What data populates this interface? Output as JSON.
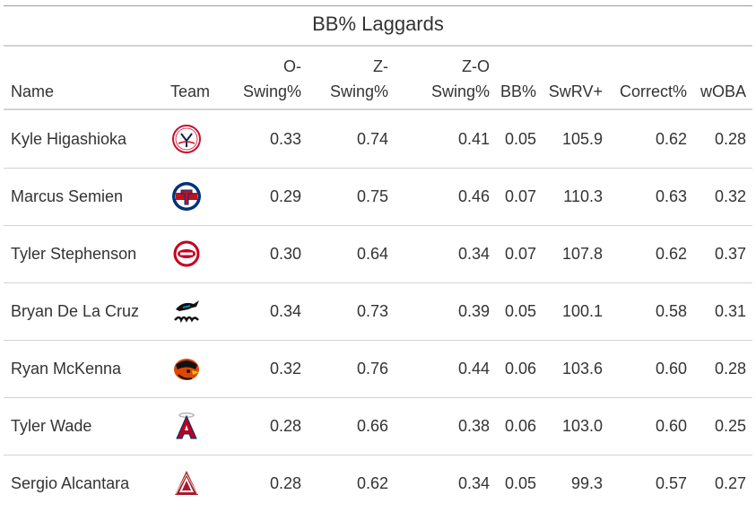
{
  "title": "BB% Laggards",
  "columns": {
    "name": "Name",
    "team": "Team",
    "o_swing_1": "O-",
    "o_swing_2": "Swing%",
    "z_swing_1": "Z-",
    "z_swing_2": "Swing%",
    "zo_swing_1": "Z-O",
    "zo_swing_2": "Swing%",
    "bb": "BB%",
    "swrv": "SwRV+",
    "correct": "Correct%",
    "woba": "wOBA"
  },
  "rows": [
    {
      "name": "Kyle Higashioka",
      "team_icon": "yankees-logo-icon",
      "o_swing": "0.33",
      "z_swing": "0.74",
      "zo_swing": "0.41",
      "bb": "0.05",
      "swrv": "105.9",
      "correct": "0.62",
      "woba": "0.28"
    },
    {
      "name": "Marcus Semien",
      "team_icon": "rangers-logo-icon",
      "o_swing": "0.29",
      "z_swing": "0.75",
      "zo_swing": "0.46",
      "bb": "0.07",
      "swrv": "110.3",
      "correct": "0.63",
      "woba": "0.32"
    },
    {
      "name": "Tyler Stephenson",
      "team_icon": "reds-logo-icon",
      "o_swing": "0.30",
      "z_swing": "0.64",
      "zo_swing": "0.34",
      "bb": "0.07",
      "swrv": "107.8",
      "correct": "0.62",
      "woba": "0.37"
    },
    {
      "name": "Bryan De La Cruz",
      "team_icon": "marlins-logo-icon",
      "o_swing": "0.34",
      "z_swing": "0.73",
      "zo_swing": "0.39",
      "bb": "0.05",
      "swrv": "100.1",
      "correct": "0.58",
      "woba": "0.31"
    },
    {
      "name": "Ryan McKenna",
      "team_icon": "orioles-logo-icon",
      "o_swing": "0.32",
      "z_swing": "0.76",
      "zo_swing": "0.44",
      "bb": "0.06",
      "swrv": "103.6",
      "correct": "0.60",
      "woba": "0.28"
    },
    {
      "name": "Tyler Wade",
      "team_icon": "angels-logo-icon",
      "o_swing": "0.28",
      "z_swing": "0.66",
      "zo_swing": "0.38",
      "bb": "0.06",
      "swrv": "103.0",
      "correct": "0.60",
      "woba": "0.25"
    },
    {
      "name": "Sergio Alcantara",
      "team_icon": "diamondbacks-logo-icon",
      "o_swing": "0.28",
      "z_swing": "0.62",
      "zo_swing": "0.34",
      "bb": "0.05",
      "swrv": "99.3",
      "correct": "0.57",
      "woba": "0.27"
    }
  ]
}
